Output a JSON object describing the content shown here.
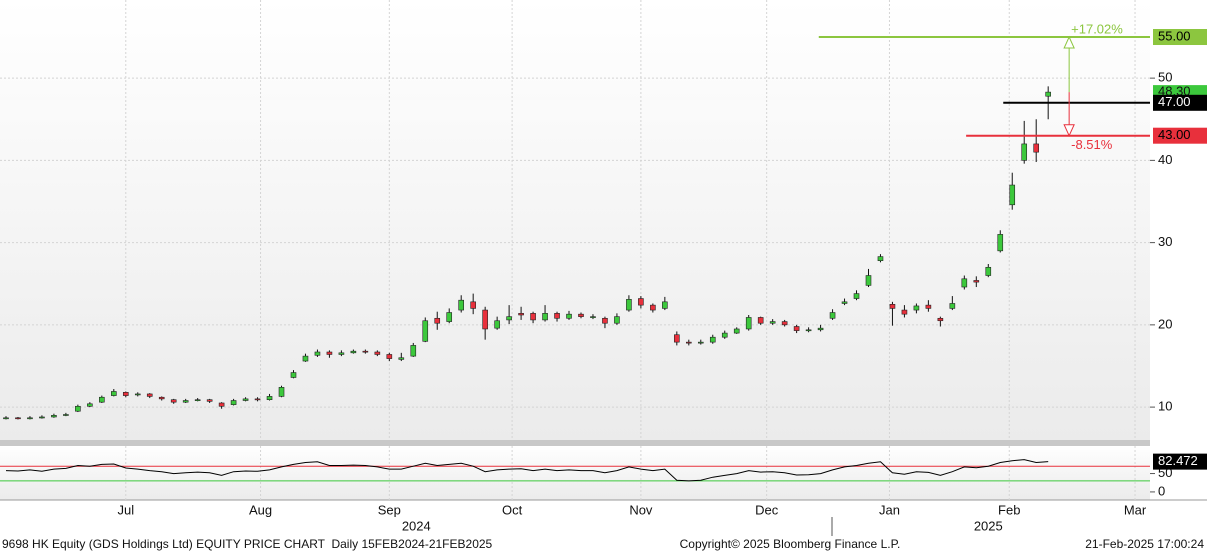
{
  "chart_data": {
    "type": "candlestick",
    "x": [
      0,
      2,
      4,
      6,
      8,
      10,
      12,
      14,
      16,
      18,
      20,
      22,
      24,
      26,
      28,
      30,
      32,
      34,
      36,
      38,
      40,
      42,
      44,
      46,
      48,
      50,
      52,
      54,
      56,
      58,
      60,
      62,
      64,
      66,
      68,
      70,
      72,
      74,
      76,
      78,
      80,
      82,
      84,
      86,
      88,
      90,
      92,
      94,
      96,
      98,
      100,
      102,
      104,
      106,
      108,
      110,
      112,
      114,
      116,
      118,
      120,
      122,
      124,
      126,
      128,
      130,
      132,
      134,
      136,
      138,
      140,
      142,
      144,
      146,
      148,
      150,
      152,
      154,
      156,
      158,
      160,
      162,
      164,
      166,
      168,
      170,
      172,
      174
    ],
    "open": [
      8.6,
      8.7,
      8.6,
      8.7,
      8.8,
      9.0,
      9.5,
      10.1,
      10.6,
      11.4,
      11.8,
      11.5,
      11.6,
      11.2,
      10.9,
      10.6,
      10.8,
      10.9,
      10.5,
      10.3,
      10.8,
      11.0,
      10.9,
      11.3,
      13.6,
      15.6,
      16.3,
      16.7,
      16.4,
      16.6,
      16.8,
      16.7,
      16.4,
      15.8,
      16.2,
      18.0,
      20.8,
      20.4,
      21.8,
      22.8,
      21.8,
      19.6,
      20.6,
      21.4,
      21.4,
      20.6,
      21.4,
      20.8,
      21.3,
      21.0,
      20.8,
      20.2,
      21.8,
      23.2,
      22.4,
      22.0,
      18.8,
      17.9,
      17.8,
      17.9,
      18.5,
      19.0,
      19.5,
      20.9,
      20.2,
      20.4,
      19.8,
      19.3,
      19.4,
      20.8,
      22.6,
      23.2,
      24.8,
      27.8,
      22.5,
      21.8,
      21.8,
      22.4,
      20.8,
      22.0,
      24.6,
      25.4,
      26.0,
      29.0,
      34.6,
      40.0,
      42.0,
      47.8
    ],
    "high": [
      8.9,
      8.8,
      8.9,
      9.0,
      9.2,
      9.3,
      10.3,
      10.6,
      11.4,
      12.2,
      11.9,
      11.8,
      11.7,
      11.3,
      11.0,
      11.0,
      11.1,
      11.0,
      10.6,
      11.0,
      11.2,
      11.2,
      11.6,
      12.6,
      14.5,
      16.5,
      17.0,
      16.9,
      16.9,
      17.0,
      17.0,
      16.9,
      16.6,
      16.6,
      17.8,
      20.9,
      21.6,
      22.0,
      23.6,
      23.8,
      22.2,
      21.0,
      22.4,
      22.2,
      21.6,
      22.4,
      21.6,
      21.7,
      21.5,
      21.3,
      21.0,
      21.4,
      23.6,
      23.5,
      22.6,
      23.4,
      19.2,
      18.2,
      18.2,
      18.8,
      19.3,
      19.7,
      21.2,
      21.0,
      20.7,
      20.6,
      20.0,
      19.7,
      20.0,
      21.9,
      23.2,
      24.2,
      26.8,
      28.6,
      22.8,
      22.4,
      22.6,
      23.0,
      21.0,
      23.5,
      26.0,
      25.9,
      27.4,
      31.5,
      38.5,
      44.8,
      45.0,
      49.0
    ],
    "low": [
      8.5,
      8.5,
      8.5,
      8.6,
      8.7,
      8.9,
      9.4,
      10.0,
      10.5,
      11.3,
      11.2,
      11.3,
      11.1,
      10.8,
      10.4,
      10.5,
      10.7,
      10.5,
      9.8,
      10.2,
      10.7,
      10.7,
      10.8,
      11.2,
      13.5,
      15.5,
      16.1,
      16.0,
      16.2,
      16.5,
      16.5,
      16.2,
      15.6,
      15.6,
      16.1,
      17.9,
      19.4,
      20.2,
      21.5,
      21.3,
      18.2,
      19.4,
      20.1,
      20.6,
      20.2,
      20.4,
      20.4,
      20.6,
      20.8,
      20.7,
      19.6,
      20.0,
      21.6,
      22.0,
      21.5,
      21.8,
      17.5,
      17.5,
      17.6,
      17.7,
      18.3,
      18.9,
      19.3,
      20.0,
      20.0,
      19.8,
      19.0,
      19.1,
      19.2,
      20.6,
      22.4,
      23.0,
      24.6,
      27.6,
      19.9,
      20.9,
      21.4,
      21.6,
      19.8,
      21.8,
      24.3,
      24.6,
      25.8,
      28.8,
      34.0,
      39.6,
      39.8,
      45.0
    ],
    "close": [
      8.7,
      8.6,
      8.7,
      8.8,
      9.0,
      9.1,
      10.1,
      10.4,
      11.2,
      11.9,
      11.4,
      11.6,
      11.3,
      11.0,
      10.6,
      10.8,
      10.9,
      10.7,
      10.1,
      10.8,
      11.0,
      10.9,
      11.3,
      12.4,
      14.2,
      16.2,
      16.7,
      16.4,
      16.6,
      16.8,
      16.7,
      16.4,
      15.9,
      16.0,
      17.5,
      20.5,
      20.2,
      21.5,
      23.0,
      22.0,
      19.5,
      20.5,
      21.0,
      21.2,
      20.6,
      21.4,
      20.8,
      21.3,
      21.0,
      21.0,
      20.2,
      21.0,
      23.1,
      22.4,
      21.8,
      22.8,
      17.9,
      17.8,
      17.9,
      18.5,
      19.0,
      19.5,
      20.9,
      20.2,
      20.4,
      20.0,
      19.3,
      19.4,
      19.6,
      21.5,
      22.8,
      23.8,
      26.0,
      28.3,
      22.0,
      21.3,
      22.3,
      22.0,
      20.5,
      22.6,
      25.6,
      25.2,
      27.0,
      31.0,
      37.0,
      42.0,
      41.0,
      48.3
    ],
    "up_color": "#3cc83c",
    "down_color": "#e8303c",
    "xlim": [
      -1,
      191
    ],
    "xticks": [
      {
        "value": 20,
        "label": "Jul"
      },
      {
        "value": 42.5,
        "label": "Aug"
      },
      {
        "value": 64,
        "label": "Sep"
      },
      {
        "value": 84.5,
        "label": "Oct"
      },
      {
        "value": 106,
        "label": "Nov"
      },
      {
        "value": 127,
        "label": "Dec"
      },
      {
        "value": 147.5,
        "label": "Jan"
      },
      {
        "value": 167.5,
        "label": "Feb"
      },
      {
        "value": 188.5,
        "label": "Mar"
      }
    ],
    "year_ticks": [
      {
        "value": 68.5,
        "label": "2024"
      },
      {
        "value": 164,
        "label": "2025"
      }
    ],
    "ylim": [
      6,
      59.5
    ],
    "yticks": [
      10,
      20,
      30,
      40,
      50
    ],
    "grid": true,
    "last_price": {
      "value": 48.3,
      "label": "48.30",
      "color": "#3cc83c"
    },
    "arrow_x": 177.5,
    "levels": [
      {
        "value": 55,
        "label": "55.00",
        "color": "#8cc63f",
        "text_color": "#000000",
        "start_x": 135.7,
        "change": "+17.02%"
      },
      {
        "value": 47,
        "label": "47.00",
        "color": "#000000",
        "text_color": "#ffffff",
        "start_x": 166.5
      },
      {
        "value": 43,
        "label": "43.00",
        "color": "#e8303c",
        "text_color": "#000000",
        "start_x": 160.3,
        "change": "-8.51%"
      }
    ],
    "rsi": {
      "values": [
        58,
        57,
        60,
        56,
        62,
        64,
        72,
        70,
        75,
        76,
        65,
        62,
        58,
        55,
        50,
        52,
        54,
        52,
        45,
        55,
        57,
        56,
        60,
        68,
        75,
        80,
        82,
        72,
        72,
        73,
        72,
        68,
        62,
        62,
        70,
        78,
        72,
        75,
        78,
        70,
        55,
        60,
        62,
        63,
        58,
        62,
        58,
        60,
        58,
        58,
        52,
        58,
        68,
        62,
        58,
        62,
        32,
        30,
        32,
        40,
        45,
        50,
        58,
        54,
        55,
        52,
        46,
        47,
        50,
        60,
        68,
        72,
        78,
        82,
        52,
        48,
        55,
        53,
        45,
        55,
        68,
        66,
        70,
        80,
        85,
        88,
        80,
        82.472
      ],
      "color": "#000000",
      "ylim": [
        -22,
        125
      ],
      "yticks": [
        0,
        50
      ],
      "ref_lines": [
        {
          "value": 70,
          "color": "#e8303c"
        },
        {
          "value": 30,
          "color": "#3cc83c"
        }
      ]
    },
    "footer_left": "9698 HK Equity (GDS Holdings Ltd) EQUITY PRICE CHART  Daily 15FEB2024-21FEB2025",
    "footer_center": "Copyright© 2025 Bloomberg Finance L.P.",
    "footer_right": "21-Feb-2025 17:00:24"
  }
}
